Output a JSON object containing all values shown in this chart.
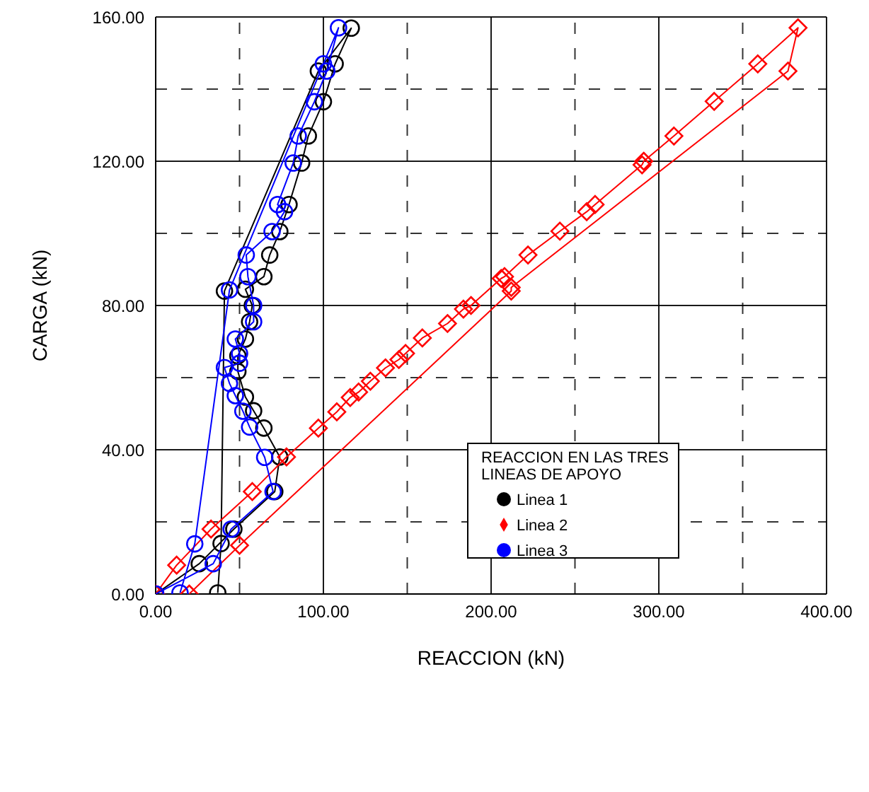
{
  "chart_data": {
    "type": "line",
    "xlabel": "REACCION (kN)",
    "ylabel": "CARGA (kN)",
    "legend_title": "REACCION EN LAS TRES LINEAS DE APOYO",
    "legend": "bottom",
    "grid": true,
    "xlim": [
      0,
      400
    ],
    "ylim": [
      0,
      160
    ],
    "xticks": [
      {
        "value": 0,
        "label": "0.00"
      },
      {
        "value": 50,
        "label": null
      },
      {
        "value": 100,
        "label": "100.00"
      },
      {
        "value": 150,
        "label": null
      },
      {
        "value": 200,
        "label": "200.00"
      },
      {
        "value": 250,
        "label": null
      },
      {
        "value": 300,
        "label": "300.00"
      },
      {
        "value": 350,
        "label": null
      },
      {
        "value": 400,
        "label": "400.00"
      }
    ],
    "yticks": [
      {
        "value": 0,
        "label": "0.00"
      },
      {
        "value": 20,
        "label": null
      },
      {
        "value": 40,
        "label": "40.00"
      },
      {
        "value": 60,
        "label": null
      },
      {
        "value": 80,
        "label": "80.00"
      },
      {
        "value": 100,
        "label": null
      },
      {
        "value": 120,
        "label": "120.00"
      },
      {
        "value": 140,
        "label": null
      },
      {
        "value": 160,
        "label": "160.00"
      }
    ],
    "series": [
      {
        "name": "Linea 1",
        "color": "#000000",
        "marker": "circle",
        "x": [
          0,
          26,
          46.6,
          71,
          74,
          64.5,
          58.4,
          53.5,
          49,
          49,
          53.5,
          56,
          57.6,
          53.5,
          64.5,
          68,
          74,
          79.5,
          87,
          91,
          100,
          107,
          116.6,
          97,
          41,
          39,
          37
        ],
        "values": [
          0,
          8.4,
          18,
          28.4,
          38,
          46,
          50.8,
          54.6,
          61.7,
          66,
          70.7,
          75.5,
          80,
          84.5,
          88,
          94,
          100.5,
          108,
          119.5,
          127,
          136.5,
          147,
          156.9,
          145,
          84,
          14,
          0.3
        ]
      },
      {
        "name": "Linea 2",
        "color": "#ff0000",
        "marker": "diamond",
        "x": [
          0,
          12.5,
          33,
          57.6,
          78,
          97,
          108,
          116,
          121,
          128,
          137,
          145,
          149,
          159,
          174,
          183.5,
          188,
          206,
          208,
          222,
          241,
          257,
          262,
          290,
          291,
          309,
          333,
          359,
          383,
          377,
          212,
          212,
          50,
          20
        ],
        "values": [
          0,
          8,
          18,
          28.4,
          38,
          46,
          50.5,
          54.5,
          56,
          59,
          62.7,
          65,
          66.7,
          71,
          75,
          79,
          80,
          87.5,
          88,
          94,
          100.6,
          106,
          108,
          119,
          120,
          127,
          136.6,
          147,
          157,
          145,
          85,
          84,
          13.5,
          0
        ]
      },
      {
        "name": "Linea 3",
        "color": "#0000ff",
        "marker": "circle",
        "x": [
          0,
          34.3,
          45,
          70,
          65,
          56,
          52,
          47.5,
          44,
          41,
          50,
          50,
          47.5,
          58.4,
          58.4,
          55,
          54,
          69.4,
          76.8,
          72.7,
          82,
          85,
          94.6,
          102,
          109,
          100,
          44,
          23.3,
          14.5
        ],
        "values": [
          0,
          8.4,
          18,
          28.4,
          37.9,
          46.3,
          50.7,
          55,
          58.4,
          62.8,
          64,
          66.7,
          70.7,
          75.5,
          80,
          88,
          94,
          100.5,
          106,
          108,
          119.5,
          127,
          136.5,
          145,
          157,
          147,
          84.3,
          13.9,
          0.3
        ]
      }
    ]
  }
}
